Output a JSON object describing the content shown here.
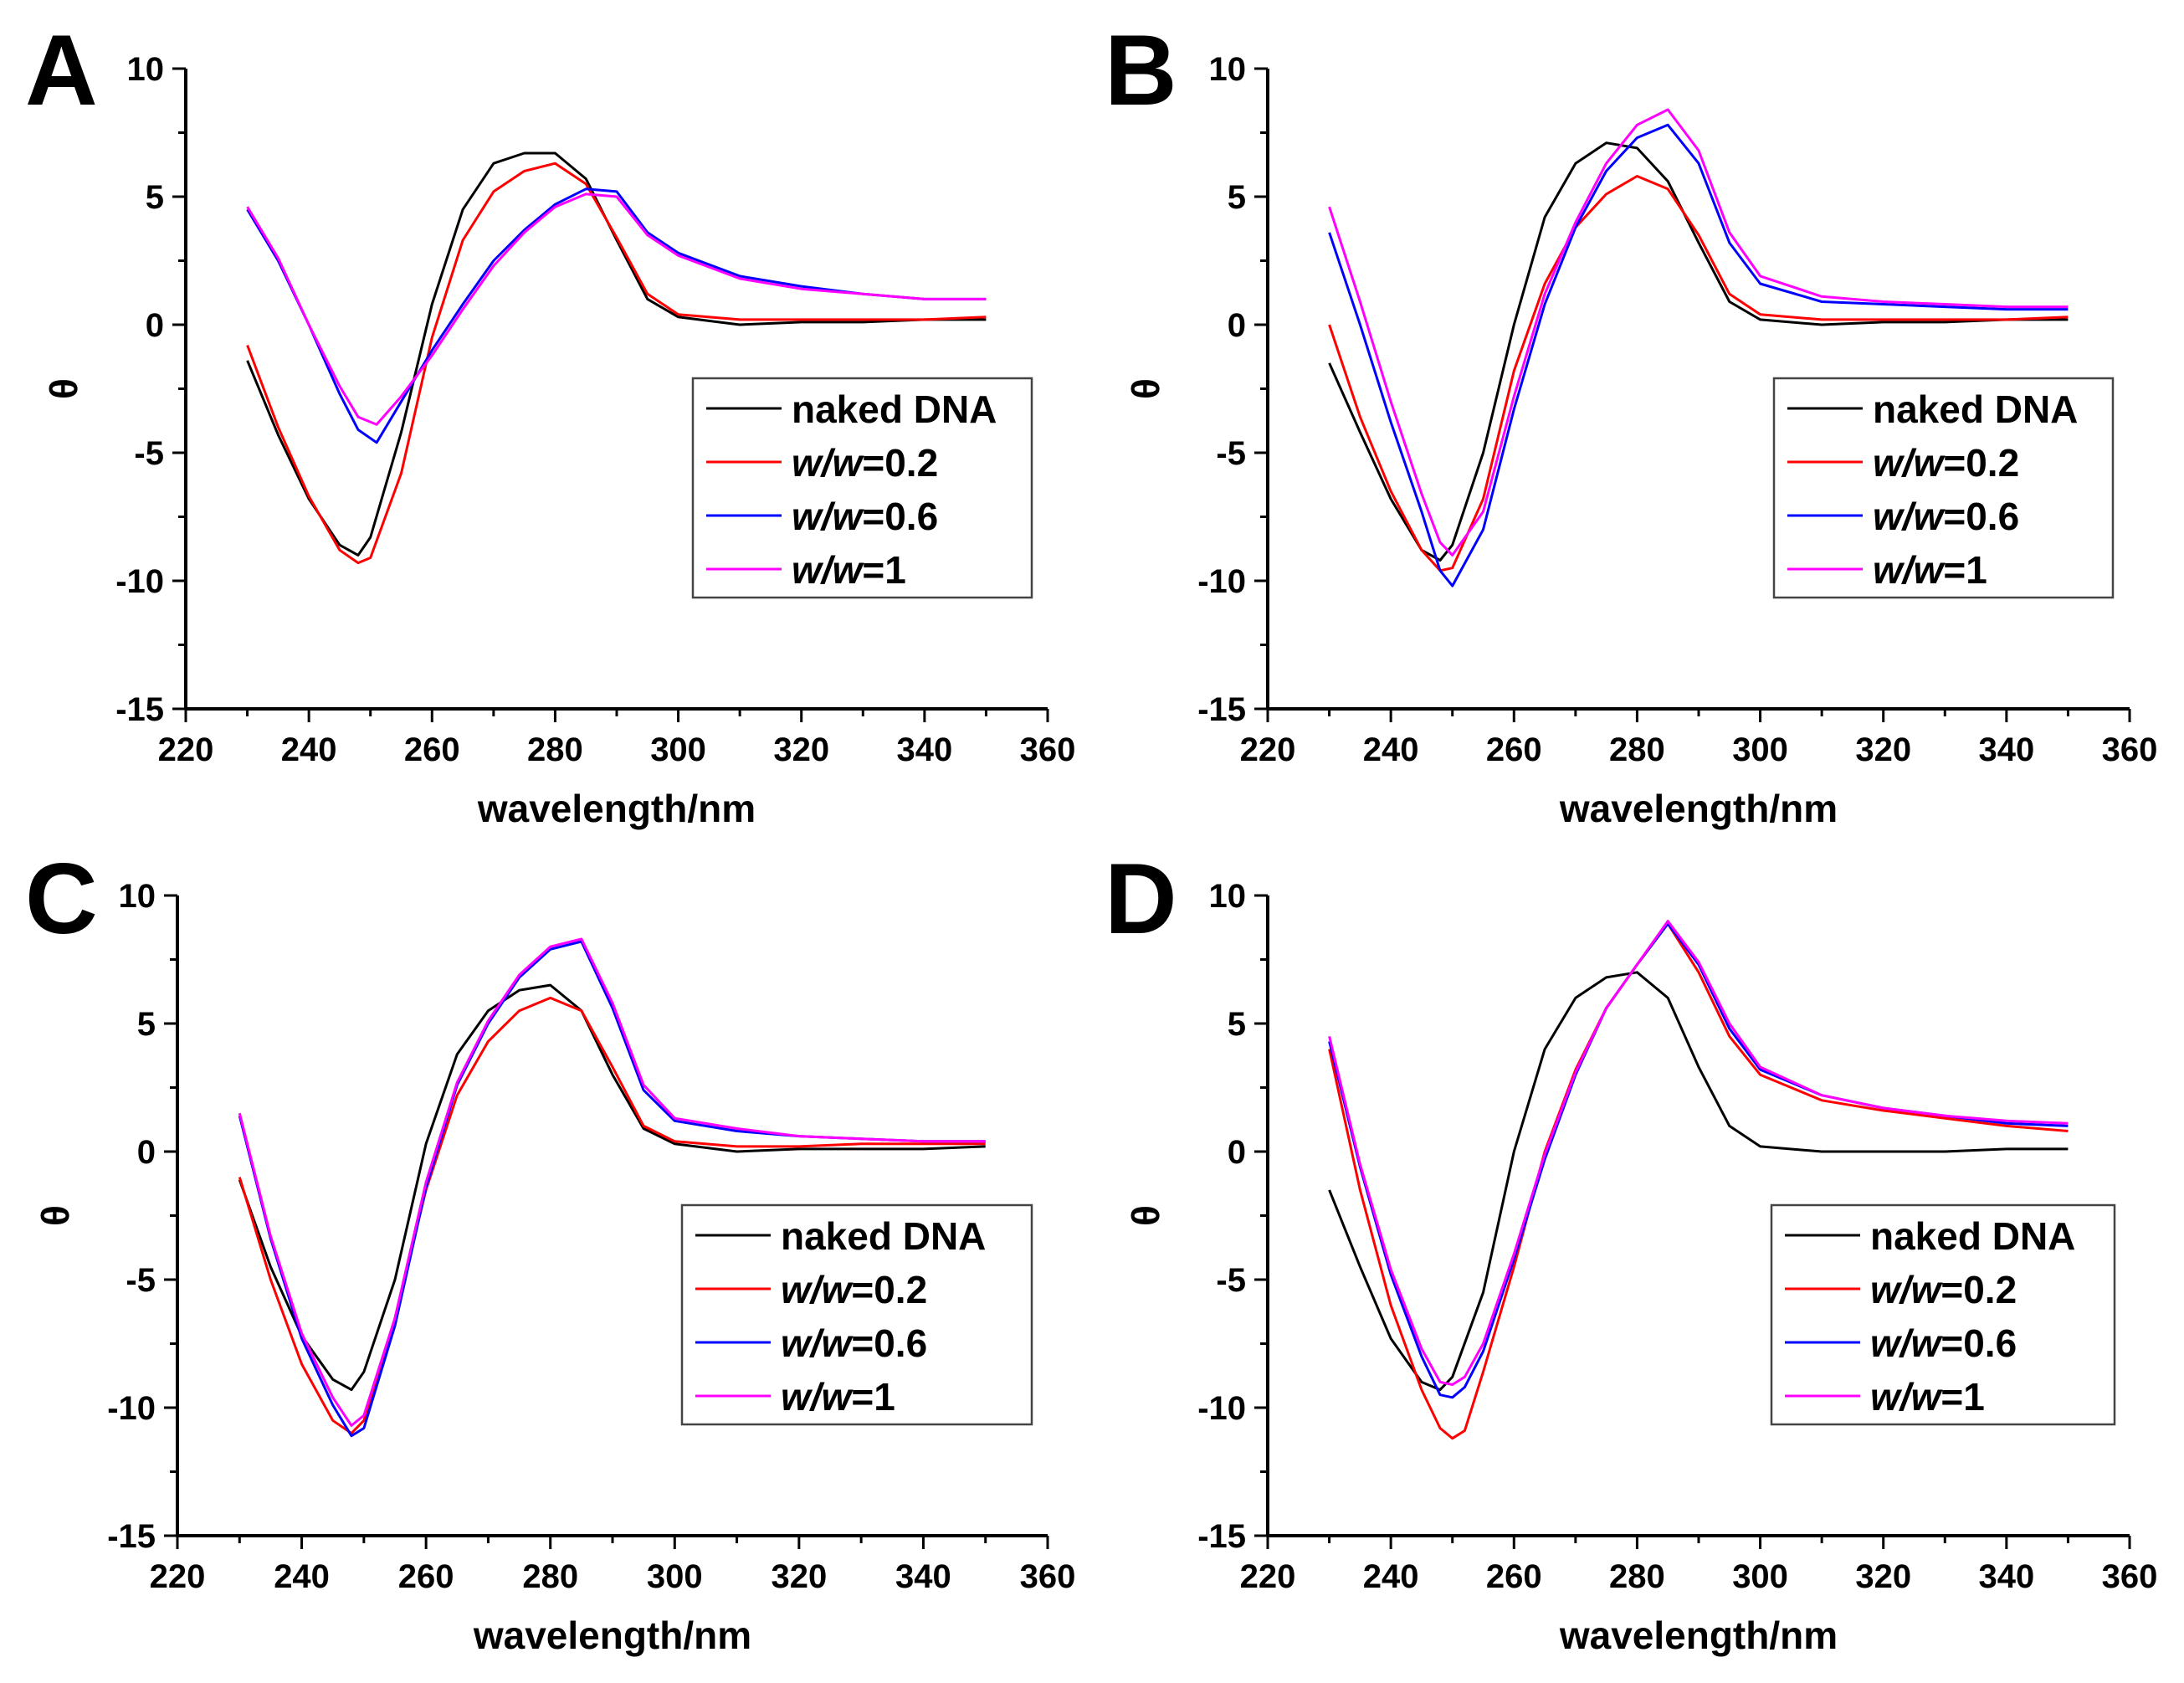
{
  "figure": {
    "panels": [
      "A",
      "B",
      "C",
      "D"
    ]
  },
  "legend": {
    "entries": [
      {
        "prefix": "naked DNA",
        "italic": "",
        "suffix": ""
      },
      {
        "prefix": "",
        "italic": "w/w",
        "suffix": "=0.2"
      },
      {
        "prefix": "",
        "italic": "w/w",
        "suffix": "=0.6"
      },
      {
        "prefix": "",
        "italic": "w/w",
        "suffix": "=1"
      }
    ]
  },
  "colors": {
    "naked_dna": "#000000",
    "ww_0_2": "#ff0000",
    "ww_0_6": "#0000ff",
    "ww_1": "#ff00ff"
  },
  "chart_data": [
    {
      "panel": "A",
      "type": "line",
      "xlabel": "wavelength/nm",
      "ylabel": "θ",
      "xlim": [
        220,
        360
      ],
      "ylim": [
        -15,
        10
      ],
      "xticks": [
        220,
        240,
        260,
        280,
        300,
        320,
        340,
        360
      ],
      "yticks": [
        -15,
        -10,
        -5,
        0,
        5,
        10
      ],
      "legend_position": "right-middle",
      "grid": false,
      "series": [
        {
          "name": "naked DNA",
          "color": "#000000",
          "x": [
            230,
            235,
            240,
            245,
            248,
            250,
            255,
            260,
            265,
            270,
            275,
            280,
            285,
            290,
            295,
            300,
            310,
            320,
            330,
            340,
            350
          ],
          "y": [
            -1.4,
            -4.3,
            -6.8,
            -8.6,
            -9.0,
            -8.3,
            -4.2,
            0.8,
            4.5,
            6.3,
            6.7,
            6.7,
            5.7,
            3.3,
            1.0,
            0.3,
            0.0,
            0.1,
            0.1,
            0.2,
            0.2
          ]
        },
        {
          "name": "w/w=0.2",
          "color": "#ff0000",
          "x": [
            230,
            235,
            240,
            245,
            248,
            250,
            255,
            260,
            265,
            270,
            275,
            280,
            285,
            290,
            295,
            300,
            310,
            320,
            330,
            340,
            350
          ],
          "y": [
            -0.8,
            -4.0,
            -6.7,
            -8.8,
            -9.3,
            -9.1,
            -5.8,
            -0.5,
            3.3,
            5.2,
            6.0,
            6.3,
            5.5,
            3.4,
            1.2,
            0.4,
            0.2,
            0.2,
            0.2,
            0.2,
            0.3
          ]
        },
        {
          "name": "w/w=0.6",
          "color": "#0000ff",
          "x": [
            230,
            235,
            240,
            245,
            248,
            251,
            255,
            260,
            265,
            270,
            275,
            280,
            285,
            290,
            295,
            300,
            310,
            320,
            330,
            340,
            350
          ],
          "y": [
            4.5,
            2.5,
            0.0,
            -2.7,
            -4.1,
            -4.6,
            -3.0,
            -1.0,
            0.8,
            2.5,
            3.7,
            4.7,
            5.3,
            5.2,
            3.6,
            2.8,
            1.9,
            1.5,
            1.2,
            1.0,
            1.0
          ]
        },
        {
          "name": "w/w=1",
          "color": "#ff00ff",
          "x": [
            230,
            235,
            240,
            245,
            248,
            251,
            255,
            260,
            265,
            270,
            275,
            280,
            285,
            290,
            295,
            300,
            310,
            320,
            330,
            340,
            350
          ],
          "y": [
            4.6,
            2.6,
            0.0,
            -2.4,
            -3.6,
            -3.9,
            -2.8,
            -1.2,
            0.6,
            2.3,
            3.6,
            4.6,
            5.1,
            5.0,
            3.5,
            2.7,
            1.8,
            1.4,
            1.2,
            1.0,
            1.0
          ]
        }
      ]
    },
    {
      "panel": "B",
      "type": "line",
      "xlabel": "wavelength/nm",
      "ylabel": "θ",
      "xlim": [
        220,
        360
      ],
      "ylim": [
        -15,
        10
      ],
      "xticks": [
        220,
        240,
        260,
        280,
        300,
        320,
        340,
        360
      ],
      "yticks": [
        -15,
        -10,
        -5,
        0,
        5,
        10
      ],
      "legend_position": "right-middle",
      "grid": false,
      "series": [
        {
          "name": "naked DNA",
          "color": "#000000",
          "x": [
            230,
            235,
            240,
            245,
            248,
            250,
            255,
            260,
            265,
            270,
            275,
            280,
            285,
            290,
            295,
            300,
            310,
            320,
            330,
            340,
            350
          ],
          "y": [
            -1.5,
            -4.2,
            -6.8,
            -8.8,
            -9.2,
            -8.6,
            -5.0,
            0.0,
            4.2,
            6.3,
            7.1,
            6.9,
            5.6,
            3.2,
            0.9,
            0.2,
            0.0,
            0.1,
            0.1,
            0.2,
            0.2
          ]
        },
        {
          "name": "w/w=0.2",
          "color": "#ff0000",
          "x": [
            230,
            235,
            240,
            245,
            248,
            250,
            255,
            260,
            265,
            270,
            275,
            280,
            285,
            290,
            295,
            300,
            310,
            320,
            330,
            340,
            350
          ],
          "y": [
            0.0,
            -3.6,
            -6.5,
            -8.8,
            -9.6,
            -9.5,
            -6.8,
            -1.8,
            1.6,
            3.8,
            5.1,
            5.8,
            5.3,
            3.5,
            1.2,
            0.4,
            0.2,
            0.2,
            0.2,
            0.2,
            0.3
          ]
        },
        {
          "name": "w/w=0.6",
          "color": "#0000ff",
          "x": [
            230,
            235,
            240,
            245,
            248,
            250,
            255,
            260,
            265,
            270,
            275,
            280,
            285,
            290,
            295,
            300,
            310,
            320,
            330,
            340,
            350
          ],
          "y": [
            3.6,
            0.0,
            -3.8,
            -7.3,
            -9.6,
            -10.2,
            -8.0,
            -3.3,
            0.8,
            3.8,
            6.0,
            7.3,
            7.8,
            6.3,
            3.2,
            1.6,
            0.9,
            0.8,
            0.7,
            0.6,
            0.6
          ]
        },
        {
          "name": "w/w=1",
          "color": "#ff00ff",
          "x": [
            230,
            235,
            240,
            245,
            248,
            250,
            255,
            260,
            265,
            270,
            275,
            280,
            285,
            290,
            295,
            300,
            310,
            320,
            330,
            340,
            350
          ],
          "y": [
            4.6,
            0.9,
            -3.0,
            -6.6,
            -8.5,
            -9.0,
            -7.3,
            -2.8,
            1.2,
            4.0,
            6.3,
            7.8,
            8.4,
            6.8,
            3.6,
            1.9,
            1.1,
            0.9,
            0.8,
            0.7,
            0.7
          ]
        }
      ]
    },
    {
      "panel": "C",
      "type": "line",
      "xlabel": "wavelength/nm",
      "ylabel": "θ",
      "xlim": [
        220,
        360
      ],
      "ylim": [
        -15,
        10
      ],
      "xticks": [
        220,
        240,
        260,
        280,
        300,
        320,
        340,
        360
      ],
      "yticks": [
        -15,
        -10,
        -5,
        0,
        5,
        10
      ],
      "legend_position": "right-middle",
      "grid": false,
      "series": [
        {
          "name": "naked DNA",
          "color": "#000000",
          "x": [
            230,
            235,
            240,
            245,
            248,
            250,
            255,
            260,
            265,
            270,
            275,
            280,
            285,
            290,
            295,
            300,
            310,
            320,
            330,
            340,
            350
          ],
          "y": [
            -1.1,
            -4.5,
            -7.2,
            -8.9,
            -9.3,
            -8.6,
            -5.0,
            0.3,
            3.8,
            5.5,
            6.3,
            6.5,
            5.5,
            3.0,
            0.9,
            0.3,
            0.0,
            0.1,
            0.1,
            0.1,
            0.2
          ]
        },
        {
          "name": "w/w=0.2",
          "color": "#ff0000",
          "x": [
            230,
            235,
            240,
            245,
            248,
            250,
            255,
            260,
            265,
            270,
            275,
            280,
            285,
            290,
            295,
            300,
            310,
            320,
            330,
            340,
            350
          ],
          "y": [
            -1.0,
            -5.0,
            -8.3,
            -10.5,
            -11.0,
            -10.5,
            -6.5,
            -1.5,
            2.2,
            4.3,
            5.5,
            6.0,
            5.5,
            3.3,
            1.0,
            0.4,
            0.2,
            0.2,
            0.3,
            0.3,
            0.3
          ]
        },
        {
          "name": "w/w=0.6",
          "color": "#0000ff",
          "x": [
            230,
            235,
            240,
            245,
            248,
            250,
            255,
            260,
            265,
            270,
            275,
            280,
            285,
            290,
            295,
            300,
            310,
            320,
            330,
            340,
            350
          ],
          "y": [
            1.4,
            -3.4,
            -7.3,
            -9.9,
            -11.1,
            -10.8,
            -6.8,
            -1.4,
            2.6,
            5.0,
            6.8,
            7.9,
            8.2,
            5.6,
            2.4,
            1.2,
            0.8,
            0.6,
            0.5,
            0.4,
            0.4
          ]
        },
        {
          "name": "w/w=1",
          "color": "#ff00ff",
          "x": [
            230,
            235,
            240,
            245,
            248,
            250,
            255,
            260,
            265,
            270,
            275,
            280,
            285,
            290,
            295,
            300,
            310,
            320,
            330,
            340,
            350
          ],
          "y": [
            1.5,
            -3.3,
            -7.1,
            -9.6,
            -10.7,
            -10.3,
            -6.5,
            -1.2,
            2.7,
            5.1,
            6.9,
            8.0,
            8.3,
            5.8,
            2.6,
            1.3,
            0.9,
            0.6,
            0.5,
            0.4,
            0.4
          ]
        }
      ]
    },
    {
      "panel": "D",
      "type": "line",
      "xlabel": "wavelength/nm",
      "ylabel": "θ",
      "xlim": [
        220,
        360
      ],
      "ylim": [
        -15,
        10
      ],
      "xticks": [
        220,
        240,
        260,
        280,
        300,
        320,
        340,
        360
      ],
      "yticks": [
        -15,
        -10,
        -5,
        0,
        5,
        10
      ],
      "legend_position": "right-middle",
      "grid": false,
      "series": [
        {
          "name": "naked DNA",
          "color": "#000000",
          "x": [
            230,
            235,
            240,
            245,
            248,
            250,
            255,
            260,
            265,
            270,
            275,
            280,
            285,
            290,
            295,
            300,
            310,
            320,
            330,
            340,
            350
          ],
          "y": [
            -1.5,
            -4.5,
            -7.3,
            -9.0,
            -9.3,
            -8.8,
            -5.5,
            0.0,
            4.0,
            6.0,
            6.8,
            7.0,
            6.0,
            3.3,
            1.0,
            0.2,
            0.0,
            0.0,
            0.0,
            0.1,
            0.1
          ]
        },
        {
          "name": "w/w=0.2",
          "color": "#ff0000",
          "x": [
            230,
            235,
            240,
            245,
            248,
            250,
            252,
            255,
            260,
            265,
            270,
            275,
            280,
            285,
            290,
            295,
            300,
            310,
            320,
            330,
            340,
            350
          ],
          "y": [
            4.0,
            -1.5,
            -6.0,
            -9.3,
            -10.8,
            -11.2,
            -10.9,
            -8.6,
            -4.5,
            0.0,
            3.2,
            5.6,
            7.3,
            8.9,
            7.0,
            4.5,
            3.0,
            2.0,
            1.6,
            1.3,
            1.0,
            0.8
          ]
        },
        {
          "name": "w/w=0.6",
          "color": "#0000ff",
          "x": [
            230,
            235,
            240,
            245,
            248,
            250,
            252,
            255,
            260,
            265,
            270,
            275,
            280,
            285,
            290,
            295,
            300,
            310,
            320,
            330,
            340,
            350
          ],
          "y": [
            4.3,
            -0.6,
            -4.8,
            -8.0,
            -9.5,
            -9.6,
            -9.2,
            -7.8,
            -4.2,
            -0.3,
            3.0,
            5.6,
            7.3,
            8.9,
            7.3,
            4.8,
            3.2,
            2.2,
            1.7,
            1.4,
            1.1,
            1.0
          ]
        },
        {
          "name": "w/w=1",
          "color": "#ff00ff",
          "x": [
            230,
            235,
            240,
            245,
            248,
            250,
            252,
            255,
            260,
            265,
            270,
            275,
            280,
            285,
            290,
            295,
            300,
            310,
            320,
            330,
            340,
            350
          ],
          "y": [
            4.5,
            -0.5,
            -4.6,
            -7.7,
            -9.0,
            -9.1,
            -8.8,
            -7.5,
            -4.0,
            -0.1,
            3.1,
            5.6,
            7.3,
            9.0,
            7.4,
            5.0,
            3.3,
            2.2,
            1.7,
            1.4,
            1.2,
            1.1
          ]
        }
      ]
    }
  ]
}
